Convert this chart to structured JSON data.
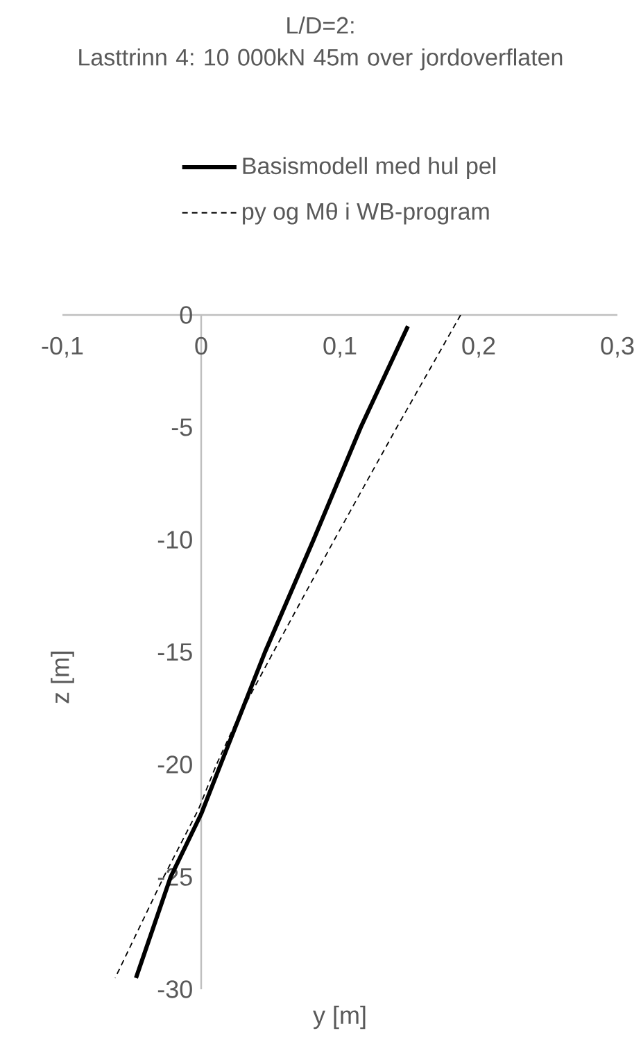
{
  "chart_data": {
    "type": "line",
    "title": "L/D=2:",
    "subtitle": "Lasttrinn 4: 10 000kN 45m over jordoverflaten",
    "xlabel": "y [m]",
    "ylabel": "z [m]",
    "xlim": [
      -0.1,
      0.3
    ],
    "ylim": [
      -30,
      0
    ],
    "xticks": [
      {
        "value": -0.1,
        "label": "-0,1"
      },
      {
        "value": 0,
        "label": "0"
      },
      {
        "value": 0.1,
        "label": "0,1"
      },
      {
        "value": 0.2,
        "label": "0,2"
      },
      {
        "value": 0.3,
        "label": "0,3"
      }
    ],
    "yticks": [
      0,
      -5,
      -10,
      -15,
      -20,
      -25,
      -30
    ],
    "grid": false,
    "legend": "top",
    "marker": "none",
    "series": [
      {
        "name": "Basismodell med hul pel",
        "color": "#000000",
        "line_style": "solid",
        "x": [
          0.149,
          0.115,
          0.081,
          0.046,
          0.014,
          0,
          -0.022,
          -0.047
        ],
        "values": [
          -0.5,
          -5,
          -10,
          -15,
          -20,
          -22.2,
          -25,
          -29.5
        ]
      },
      {
        "name": "py og Mθ i WB-program",
        "color": "#000000",
        "line_style": "dashed",
        "x": [
          0.187,
          0.141,
          0.096,
          0.052,
          0.026,
          0.011,
          -0.002,
          -0.027,
          -0.062
        ],
        "values": [
          0,
          -5,
          -10,
          -15,
          -18,
          -20,
          -22,
          -25,
          -29.5
        ]
      }
    ]
  }
}
